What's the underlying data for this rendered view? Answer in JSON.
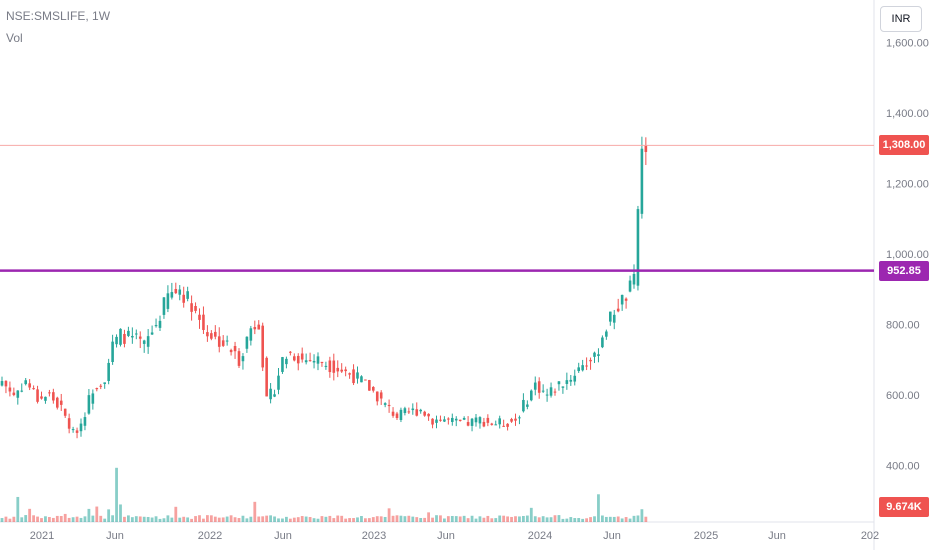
{
  "header": {
    "symbol_line": "NSE:SMSLIFE, 1W",
    "volume_label": "Vol"
  },
  "currency_button": "INR",
  "tags": {
    "last_price": "1,308.00",
    "level": "952.85",
    "volume": "9.674K"
  },
  "colors": {
    "up": "#26a69a",
    "down": "#ef5350",
    "level_line": "#9c27b0",
    "price_line": "#f7a9a7"
  },
  "chart_data": {
    "type": "candlestick",
    "ylim": [
      240,
      1720
    ],
    "y_ticks": [
      "1,600.00",
      "1,400.00",
      "1,200.00",
      "1,000.00",
      "800.00",
      "600.00",
      "400.00"
    ],
    "y_tick_values": [
      1600,
      1400,
      1200,
      1000,
      800,
      600,
      400
    ],
    "x_ticks": [
      "2021",
      "Jun",
      "2022",
      "Jun",
      "2023",
      "Jun",
      "2024",
      "Jun",
      "2025",
      "Jun",
      "202"
    ],
    "horizontal_level": 952.85,
    "last_price": 1308,
    "ohlc_anchors": [
      [
        0,
        640
      ],
      [
        3,
        600
      ],
      [
        6,
        640
      ],
      [
        9,
        590
      ],
      [
        12,
        600
      ],
      [
        15,
        560
      ],
      [
        18,
        490
      ],
      [
        20,
        520
      ],
      [
        23,
        620
      ],
      [
        26,
        650
      ],
      [
        28,
        740
      ],
      [
        30,
        770
      ],
      [
        33,
        760
      ],
      [
        36,
        740
      ],
      [
        39,
        800
      ],
      [
        42,
        880
      ],
      [
        45,
        900
      ],
      [
        48,
        860
      ],
      [
        51,
        790
      ],
      [
        54,
        760
      ],
      [
        57,
        740
      ],
      [
        60,
        700
      ],
      [
        63,
        790
      ],
      [
        65,
        810
      ],
      [
        67,
        580
      ],
      [
        69,
        620
      ],
      [
        71,
        700
      ],
      [
        73,
        720
      ],
      [
        76,
        700
      ],
      [
        80,
        700
      ],
      [
        84,
        680
      ],
      [
        88,
        660
      ],
      [
        91,
        640
      ],
      [
        94,
        610
      ],
      [
        97,
        570
      ],
      [
        100,
        540
      ],
      [
        103,
        550
      ],
      [
        106,
        560
      ],
      [
        109,
        530
      ],
      [
        112,
        530
      ],
      [
        115,
        520
      ],
      [
        118,
        520
      ],
      [
        121,
        530
      ],
      [
        124,
        520
      ],
      [
        127,
        520
      ],
      [
        130,
        530
      ],
      [
        132,
        570
      ],
      [
        135,
        630
      ],
      [
        138,
        600
      ],
      [
        141,
        630
      ],
      [
        144,
        650
      ],
      [
        147,
        690
      ],
      [
        150,
        700
      ],
      [
        152,
        770
      ],
      [
        155,
        840
      ],
      [
        158,
        880
      ],
      [
        160,
        920
      ],
      [
        161,
        1130
      ],
      [
        162,
        1290
      ],
      [
        163,
        1308
      ]
    ],
    "volume_spikes": [
      [
        4,
        1.4
      ],
      [
        7,
        1.4
      ],
      [
        16,
        0.7
      ],
      [
        22,
        1.6
      ],
      [
        24,
        1.2
      ],
      [
        27,
        1.6
      ],
      [
        29,
        6.3
      ],
      [
        30,
        1.6
      ],
      [
        44,
        1.6
      ],
      [
        64,
        2.3
      ],
      [
        98,
        0.8
      ],
      [
        108,
        1.0
      ],
      [
        134,
        1.3
      ],
      [
        151,
        1.6
      ],
      [
        162,
        1.6
      ]
    ]
  }
}
